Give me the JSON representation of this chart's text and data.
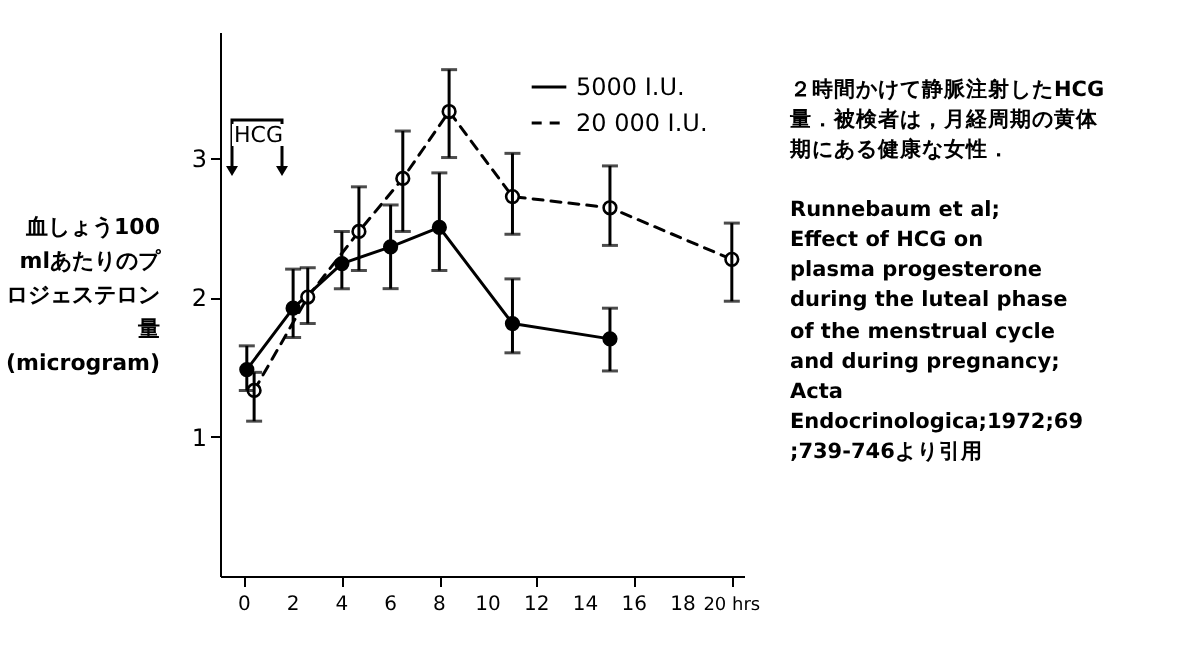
{
  "chart_data": {
    "type": "line",
    "ylabel": "血しょう100 mlあたりのプロジェステロン量(microgram)",
    "xlim": [
      -1,
      20.5
    ],
    "ylim": [
      0,
      3.9
    ],
    "xticks": [
      0,
      2,
      4,
      6,
      8,
      10,
      12,
      14,
      16,
      18,
      {
        "value": 20,
        "label": "20 hrs"
      }
    ],
    "yticks": [
      1,
      2,
      3
    ],
    "marker": "circle",
    "legend": "top right",
    "grid": false,
    "series": [
      {
        "name": "5000 I.U.",
        "color": "#000000",
        "line_style": "solid",
        "x": [
          0.1,
          2,
          4,
          6,
          8,
          11,
          15
        ],
        "values": [
          1.48,
          1.92,
          2.24,
          2.36,
          2.5,
          1.81,
          1.7
        ],
        "errors": [
          [
            1.33,
            1.65
          ],
          [
            1.71,
            2.2
          ],
          [
            2.06,
            2.47
          ],
          [
            2.06,
            2.66
          ],
          [
            2.19,
            2.89
          ],
          [
            1.6,
            2.13
          ],
          [
            1.47,
            1.92
          ]
        ]
      },
      {
        "name": "20 000 I.U.",
        "color": "#000000",
        "line_style": "dashed",
        "x": [
          0.4,
          2.6,
          4.7,
          6.5,
          8.4,
          11,
          15,
          20
        ],
        "values": [
          1.33,
          2.0,
          2.47,
          2.85,
          3.33,
          2.72,
          2.64,
          2.27
        ],
        "errors": [
          [
            1.11,
            1.46
          ],
          [
            1.81,
            2.21
          ],
          [
            2.19,
            2.79
          ],
          [
            2.47,
            3.19
          ],
          [
            3.0,
            3.63
          ],
          [
            2.45,
            3.03
          ],
          [
            2.37,
            2.94
          ],
          [
            1.97,
            2.53
          ]
        ]
      }
    ],
    "annotations": [
      "HCG",
      "２時間かけて静脈注射したHCG量．被検者は，月経周期の黄体期にある健康な女性．",
      "Runnebaum et al;\nEffect of HCG on\nplasma progesterone\nduring the luteal phase\nof the menstrual cycle\nand during pregnancy;\nActa\nEndocrinologica;1972;69\n;739-746より引用"
    ]
  }
}
